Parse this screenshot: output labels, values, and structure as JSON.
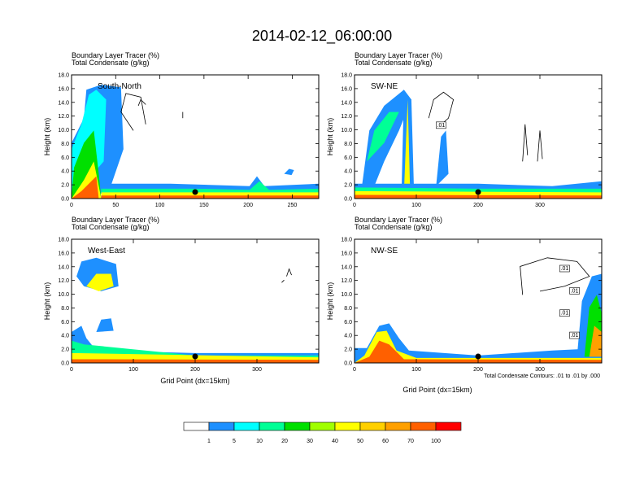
{
  "figure": {
    "title": "2014-02-12_06:00:00",
    "variable_line1": "Boundary Layer Tracer   (%)",
    "variable_line2": "Total Condensate   (g/kg)",
    "ylabel": "Height (km)",
    "xlabel": "Grid Point (dx=15km)",
    "contour_note": "Total Condensate Contours: .01 to .01 by .000"
  },
  "colorbar": {
    "labels": [
      "1",
      "5",
      "10",
      "20",
      "30",
      "40",
      "50",
      "60",
      "70",
      "100"
    ],
    "colors": [
      "#ffffff",
      "#1e90ff",
      "#00ffff",
      "#00ff96",
      "#00e000",
      "#a0ff00",
      "#ffff00",
      "#ffd000",
      "#ffa000",
      "#ff6000",
      "#ff0000"
    ]
  },
  "chart_data": [
    {
      "type": "heatmap",
      "name": "South-North",
      "xlim": [
        0,
        280
      ],
      "xticks": [
        "0",
        "50",
        "100",
        "150",
        "200",
        "250"
      ],
      "ylim": [
        0,
        18
      ],
      "yticks": [
        "0.0",
        "2.0",
        "4.0",
        "6.0",
        "8.0",
        "10.0",
        "12.0",
        "14.0",
        "16.0",
        "18.0"
      ],
      "marker_x": 140,
      "contour_labels": []
    },
    {
      "type": "heatmap",
      "name": "SW-NE",
      "xlim": [
        0,
        400
      ],
      "xticks": [
        "0",
        "100",
        "200",
        "300"
      ],
      "ylim": [
        0,
        18
      ],
      "yticks": [
        "0.0",
        "2.0",
        "4.0",
        "6.0",
        "8.0",
        "10.0",
        "12.0",
        "14.0",
        "16.0",
        "18.0"
      ],
      "marker_x": 200,
      "contour_labels": [
        ".01"
      ]
    },
    {
      "type": "heatmap",
      "name": "West-East",
      "xlim": [
        0,
        400
      ],
      "xticks": [
        "0",
        "100",
        "200",
        "300"
      ],
      "ylim": [
        0,
        18
      ],
      "yticks": [
        "0.0",
        "2.0",
        "4.0",
        "6.0",
        "8.0",
        "10.0",
        "12.0",
        "14.0",
        "16.0",
        "18.0"
      ],
      "marker_x": 200,
      "contour_labels": []
    },
    {
      "type": "heatmap",
      "name": "NW-SE",
      "xlim": [
        0,
        400
      ],
      "xticks": [
        "0",
        "100",
        "200",
        "300"
      ],
      "ylim": [
        0,
        18
      ],
      "yticks": [
        "0.0",
        "2.0",
        "4.0",
        "6.0",
        "8.0",
        "10.0",
        "12.0",
        "14.0",
        "16.0",
        "18.0"
      ],
      "marker_x": 200,
      "contour_labels": [
        ".01",
        ".01",
        ".01",
        ".01"
      ]
    }
  ]
}
